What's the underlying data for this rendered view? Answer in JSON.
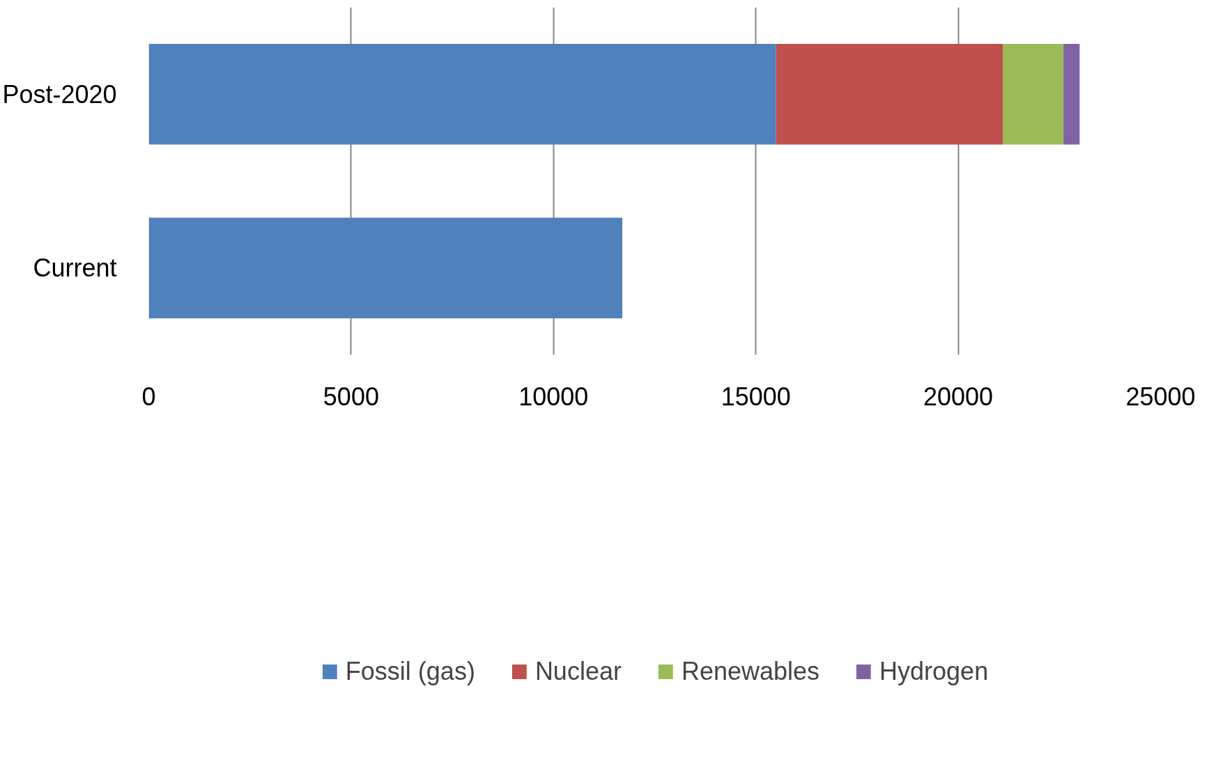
{
  "chart_data": {
    "type": "bar",
    "orientation": "horizontal",
    "stacked": true,
    "categories": [
      "Post-2020",
      "Current"
    ],
    "series": [
      {
        "name": "Fossil (gas)",
        "color": "#4f81bd",
        "values": [
          15500,
          11700
        ]
      },
      {
        "name": "Nuclear",
        "color": "#c0504d",
        "values": [
          5600,
          0
        ]
      },
      {
        "name": "Renewables",
        "color": "#9bbb59",
        "values": [
          1500,
          0
        ]
      },
      {
        "name": "Hydrogen",
        "color": "#8064a2",
        "values": [
          400,
          0
        ]
      }
    ],
    "xlim": [
      0,
      25000
    ],
    "xticks": [
      0,
      5000,
      10000,
      15000,
      20000,
      25000
    ],
    "grid": "x",
    "legend": "bottom"
  }
}
